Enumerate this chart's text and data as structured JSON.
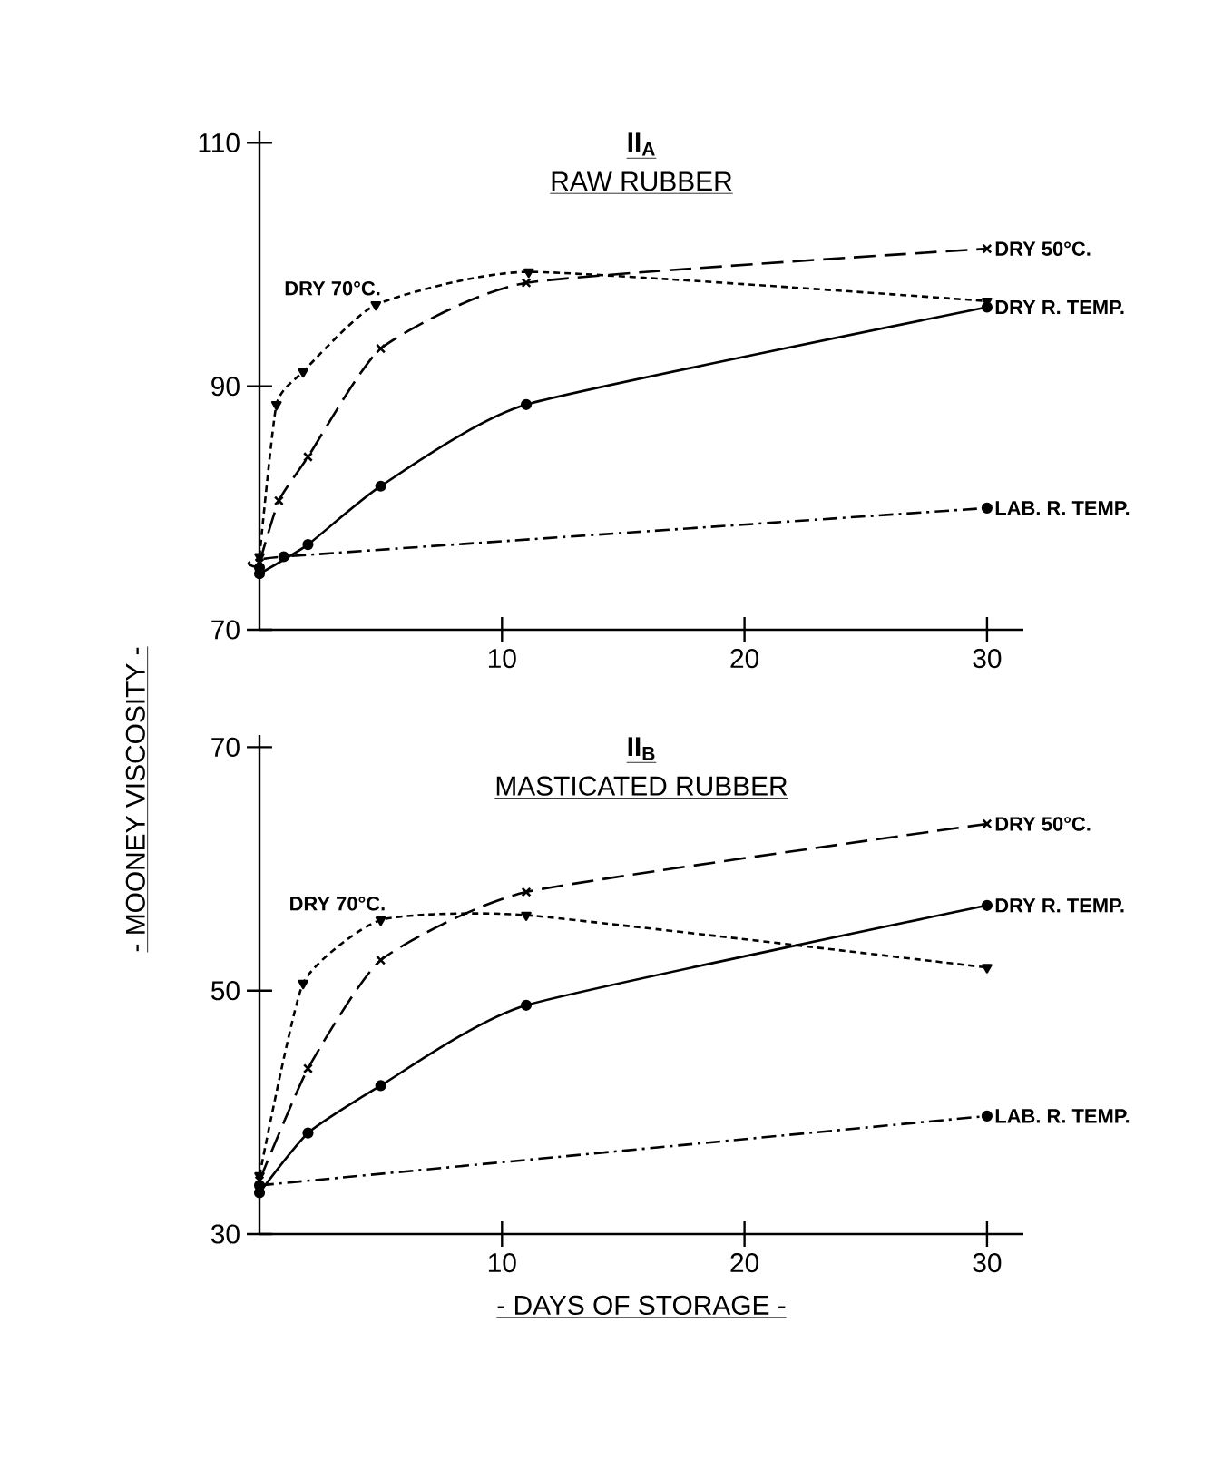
{
  "chart_data": [
    {
      "type": "line",
      "title": "II$_{A}$",
      "subtitle": "RAW RUBBER",
      "ylabel": "- MOONEY VISCOSITY -",
      "xlim": [
        0,
        31.5
      ],
      "ylim": [
        70,
        111
      ],
      "xticks": [
        10,
        20,
        30
      ],
      "yticks": [
        70,
        90,
        110
      ],
      "grid": false,
      "series": [
        {
          "name": "DRY 70°C.",
          "color": "#000000",
          "marker": "triangle",
          "line_style": "dotted",
          "x": [
            0,
            0.7,
            1.8,
            4.8,
            11.1,
            30
          ],
          "values": [
            76,
            88.5,
            91.2,
            96.7,
            99.4,
            97.0
          ]
        },
        {
          "name": "DRY 50°C.",
          "color": "#000000",
          "marker": "cross",
          "line_style": "dashed",
          "x": [
            0,
            0.8,
            2,
            5,
            11,
            30
          ],
          "values": [
            75.5,
            80.6,
            84.2,
            93.1,
            98.5,
            101.3
          ]
        },
        {
          "name": "DRY R. TEMP.",
          "color": "#000000",
          "marker": "circle",
          "line_style": "solid",
          "x": [
            0,
            2,
            5,
            11,
            30
          ],
          "values": [
            74.6,
            77,
            81.8,
            88.5,
            96.5
          ]
        },
        {
          "name": "LAB. R. TEMP.",
          "color": "#000000",
          "marker": "circle",
          "line_style": "dashdot",
          "x": [
            0,
            1,
            30
          ],
          "values": [
            75.1,
            76,
            80.0
          ]
        }
      ]
    },
    {
      "type": "line",
      "title": "II$_{B}$",
      "subtitle": "MASTICATED RUBBER",
      "xlabel": "- DAYS OF STORAGE -",
      "xlim": [
        0,
        31.5
      ],
      "ylim": [
        30,
        71
      ],
      "xticks": [
        10,
        20,
        30
      ],
      "yticks": [
        30,
        50,
        70
      ],
      "grid": false,
      "series": [
        {
          "name": "DRY 70°C.",
          "color": "#000000",
          "marker": "triangle",
          "line_style": "dotted",
          "x": [
            0,
            1.8,
            5,
            11,
            30
          ],
          "values": [
            34.8,
            50.6,
            55.8,
            56.2,
            51.9
          ]
        },
        {
          "name": "DRY 50°C.",
          "color": "#000000",
          "marker": "cross",
          "line_style": "dashed",
          "x": [
            0,
            2,
            5,
            11,
            30
          ],
          "values": [
            34.4,
            43.6,
            52.5,
            58.1,
            63.7
          ]
        },
        {
          "name": "DRY R. TEMP.",
          "color": "#000000",
          "marker": "circle",
          "line_style": "solid",
          "x": [
            0,
            2,
            5,
            11,
            30
          ],
          "values": [
            33.4,
            38.3,
            42.2,
            48.8,
            57.0
          ]
        },
        {
          "name": "LAB. R. TEMP.",
          "color": "#000000",
          "marker": "circle",
          "line_style": "dashdot",
          "x": [
            0,
            30
          ],
          "values": [
            34.0,
            39.7
          ]
        }
      ]
    }
  ]
}
